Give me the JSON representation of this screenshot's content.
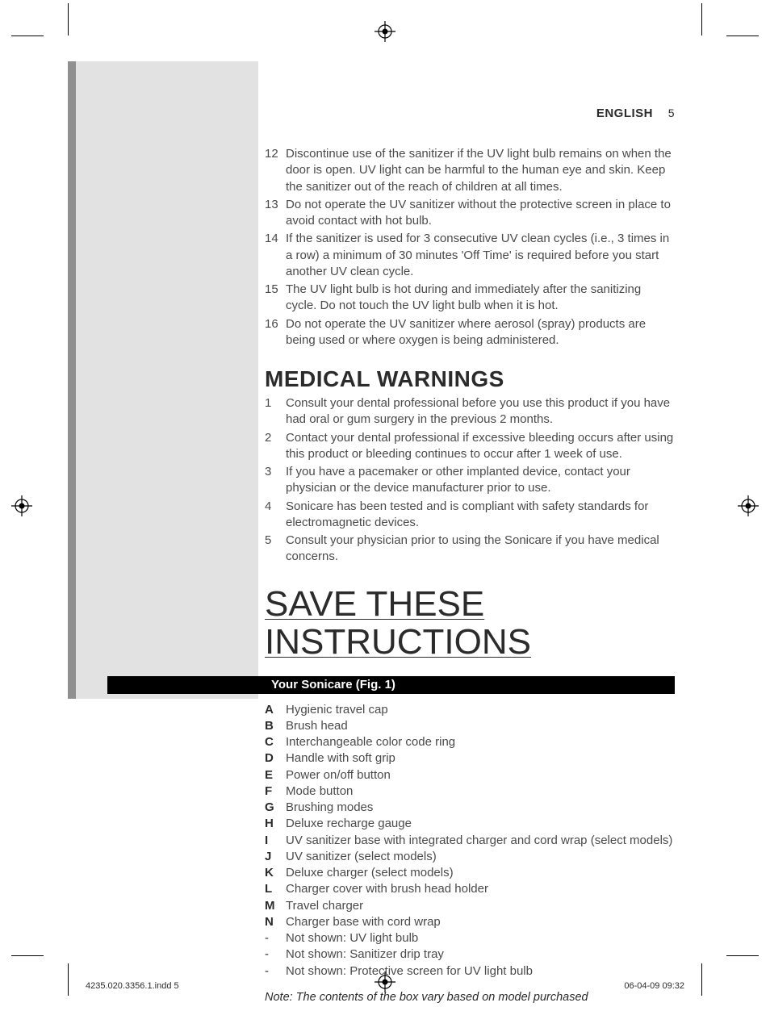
{
  "header": {
    "language": "ENGLISH",
    "page_number": "5"
  },
  "warnings_cont": [
    {
      "n": "12",
      "t": "Discontinue use of the sanitizer if the UV light bulb remains on when the door is open. UV light can be harmful to the human eye and skin. Keep the sanitizer out of the reach of children at all times."
    },
    {
      "n": "13",
      "t": "Do not operate the UV sanitizer without the protective screen in place to avoid contact with hot bulb."
    },
    {
      "n": "14",
      "t": "If the sanitizer is used for 3 consecutive UV clean cycles (i.e., 3 times in a row) a minimum of 30 minutes 'Off Time' is required before you start another UV clean cycle."
    },
    {
      "n": "15",
      "t": "The UV light bulb is hot during and immediately after the sanitizing cycle. Do not touch the UV light bulb when it is hot."
    },
    {
      "n": "16",
      "t": "Do not operate the UV sanitizer where aerosol (spray) products are being used or where oxygen is being administered."
    }
  ],
  "medical_heading": "MEDICAL WARNINGS",
  "medical": [
    {
      "n": "1",
      "t": "Consult your dental professional before you use this product if you have had oral or gum surgery in the previous 2 months."
    },
    {
      "n": "2",
      "t": "Contact your dental professional if excessive bleeding occurs after using this product or bleeding continues to occur after 1 week of use."
    },
    {
      "n": "3",
      "t": "If you have a pacemaker or other implanted device, contact your physician or the device manufacturer prior to use."
    },
    {
      "n": "4",
      "t": "Sonicare has been tested and is compliant with safety standards for electromagnetic devices."
    },
    {
      "n": "5",
      "t": "Consult your physician prior to using the Sonicare if you have medical concerns."
    }
  ],
  "save_heading_1": "SAVE THESE",
  "save_heading_2": "INSTRUCTIONS",
  "fig_heading": "Your Sonicare (Fig. 1)",
  "parts": [
    {
      "l": "A",
      "t": "Hygienic travel cap"
    },
    {
      "l": "B",
      "t": "Brush head"
    },
    {
      "l": "C",
      "t": "Interchangeable color code ring"
    },
    {
      "l": "D",
      "t": "Handle with soft grip"
    },
    {
      "l": "E",
      "t": "Power on/off button"
    },
    {
      "l": "F",
      "t": "Mode button"
    },
    {
      "l": "G",
      "t": "Brushing modes"
    },
    {
      "l": "H",
      "t": "Deluxe recharge gauge"
    },
    {
      "l": "I",
      "t": "UV sanitizer base with integrated charger and cord wrap (select models)"
    },
    {
      "l": "J",
      "t": "UV sanitizer (select models)"
    },
    {
      "l": "K",
      "t": "Deluxe charger (select models)"
    },
    {
      "l": "L",
      "t": "Charger cover with brush head holder"
    },
    {
      "l": "M",
      "t": "Travel charger"
    },
    {
      "l": "N",
      "t": "Charger base with cord wrap"
    }
  ],
  "not_shown": [
    "Not shown: UV light bulb",
    "Not shown: Sanitizer drip tray",
    "Not shown: Protective screen for UV light bulb"
  ],
  "note": "Note: The contents of the box vary based on model purchased",
  "footer": {
    "left": "4235.020.3356.1.indd   5",
    "right": "06-04-09   09:32"
  },
  "colors": {
    "text": "#4a4a4a",
    "heading": "#2b2b2b",
    "grey_col": "#e3e2e2",
    "grey_strip": "#909090",
    "black": "#000000",
    "white": "#ffffff"
  }
}
